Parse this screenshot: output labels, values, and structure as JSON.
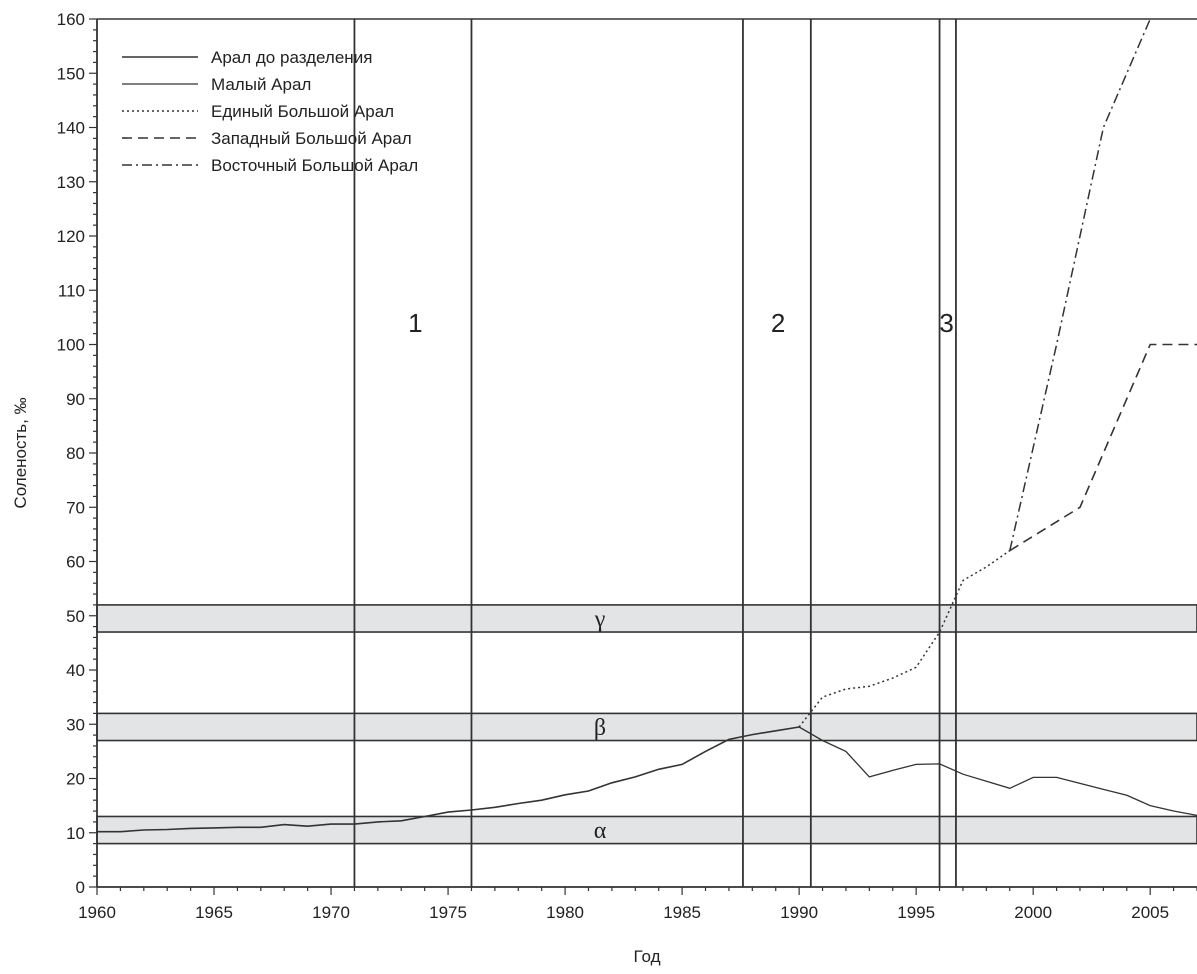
{
  "chart_data": {
    "type": "line",
    "title": "",
    "xlabel": "Год",
    "ylabel": "Соленость, ‰",
    "xlim": [
      1960,
      2007
    ],
    "ylim": [
      0,
      160
    ],
    "x_ticks": [
      1960,
      1965,
      1970,
      1975,
      1980,
      1985,
      1990,
      1995,
      2000,
      2005
    ],
    "y_ticks": [
      0,
      10,
      20,
      30,
      40,
      50,
      60,
      70,
      80,
      90,
      100,
      110,
      120,
      130,
      140,
      150,
      160
    ],
    "grid": false,
    "legend_position": "top-left",
    "series": [
      {
        "name": "Арал до разделения",
        "style": "solid",
        "points": [
          [
            1960,
            10.2
          ],
          [
            1961,
            10.2
          ],
          [
            1962,
            10.5
          ],
          [
            1963,
            10.6
          ],
          [
            1964,
            10.8
          ],
          [
            1965,
            10.9
          ],
          [
            1966,
            11.0
          ],
          [
            1967,
            11.0
          ],
          [
            1968,
            11.5
          ],
          [
            1969,
            11.2
          ],
          [
            1970,
            11.6
          ],
          [
            1971,
            11.6
          ],
          [
            1972,
            12.0
          ],
          [
            1973,
            12.2
          ],
          [
            1974,
            13.0
          ],
          [
            1975,
            13.8
          ],
          [
            1976,
            14.2
          ],
          [
            1977,
            14.7
          ],
          [
            1978,
            15.4
          ],
          [
            1979,
            16.0
          ],
          [
            1980,
            17.0
          ],
          [
            1981,
            17.7
          ],
          [
            1982,
            19.2
          ],
          [
            1983,
            20.3
          ],
          [
            1984,
            21.7
          ],
          [
            1985,
            22.6
          ],
          [
            1986,
            25.0
          ],
          [
            1987,
            27.2
          ],
          [
            1988,
            28.1
          ],
          [
            1989,
            28.8
          ],
          [
            1990,
            29.5
          ]
        ]
      },
      {
        "name": "Малый Арал",
        "style": "solid-thin",
        "points": [
          [
            1990,
            29.5
          ],
          [
            1991,
            27.0
          ],
          [
            1992,
            25.0
          ],
          [
            1993,
            20.3
          ],
          [
            1994,
            21.5
          ],
          [
            1995,
            22.6
          ],
          [
            1996,
            22.7
          ],
          [
            1997,
            20.8
          ],
          [
            1998,
            19.5
          ],
          [
            1999,
            18.2
          ],
          [
            2000,
            20.2
          ],
          [
            2001,
            20.2
          ],
          [
            2002,
            19.1
          ],
          [
            2003,
            18.0
          ],
          [
            2004,
            16.9
          ],
          [
            2005,
            15.0
          ],
          [
            2006,
            14.0
          ],
          [
            2007,
            13.2
          ]
        ]
      },
      {
        "name": "Единый Большой Арал",
        "style": "dotted",
        "points": [
          [
            1990,
            29.5
          ],
          [
            1991,
            35.0
          ],
          [
            1992,
            36.5
          ],
          [
            1993,
            37.0
          ],
          [
            1994,
            38.5
          ],
          [
            1995,
            40.5
          ],
          [
            1996,
            47.0
          ],
          [
            1997,
            56.5
          ],
          [
            1998,
            59.0
          ],
          [
            1999,
            62.0
          ]
        ]
      },
      {
        "name": "Западный Большой Арал",
        "style": "dashed",
        "points": [
          [
            1999,
            62.0
          ],
          [
            2002,
            70.0
          ],
          [
            2005,
            100.0
          ],
          [
            2007,
            100.0
          ]
        ]
      },
      {
        "name": "Восточный Большой Арал",
        "style": "dash-dot",
        "points": [
          [
            1999,
            62.0
          ],
          [
            2001,
            100.0
          ],
          [
            2003,
            140.0
          ],
          [
            2005,
            160.0
          ]
        ]
      }
    ],
    "vertical_lines": [
      1971,
      1976,
      1987.6,
      1990.5,
      1996,
      1996.7
    ],
    "zone_labels": [
      {
        "text": "1",
        "x": 1973.6,
        "y": 104
      },
      {
        "text": "2",
        "x": 1989.1,
        "y": 104
      },
      {
        "text": "3",
        "x": 1996.3,
        "y": 104
      }
    ],
    "bands": [
      {
        "label": "α",
        "from": 8,
        "to": 13
      },
      {
        "label": "β",
        "from": 27,
        "to": 32
      },
      {
        "label": "γ",
        "from": 47,
        "to": 52
      }
    ]
  }
}
